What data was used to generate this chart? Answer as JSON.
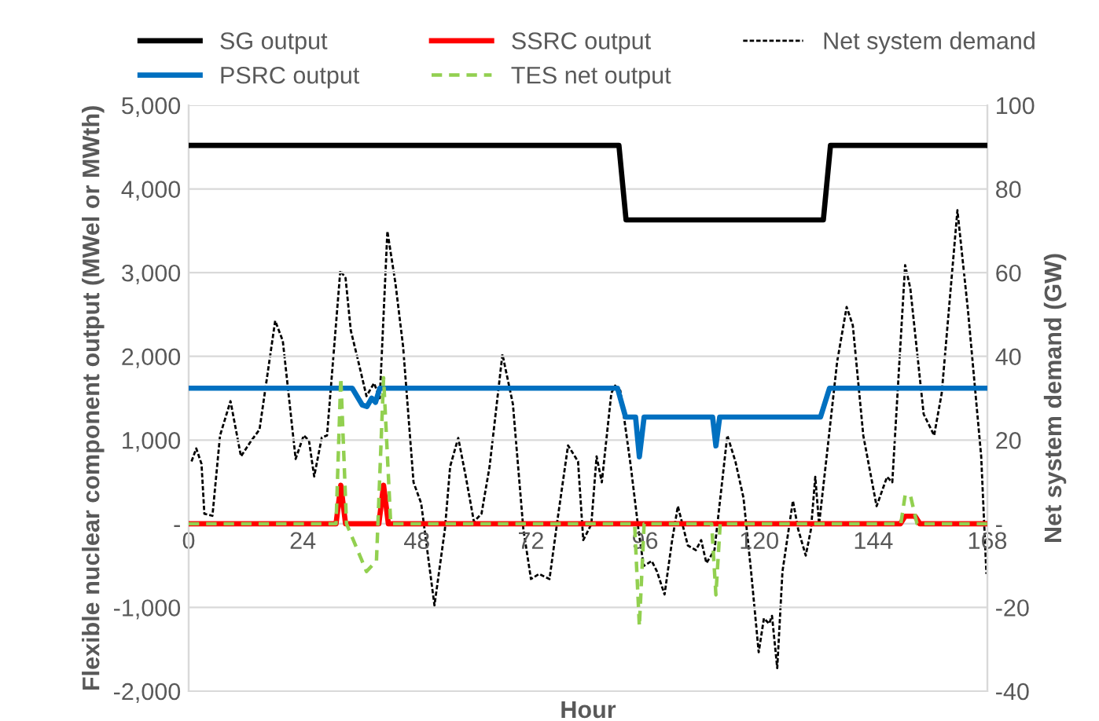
{
  "chart_data": {
    "type": "line",
    "xlabel": "Hour",
    "ylabel": "Flexible nuclear component output (MWel or MWth)",
    "y2label": "Net system demand (GW)",
    "xlim": [
      0,
      168
    ],
    "xticks": [
      0,
      24,
      48,
      72,
      96,
      120,
      144,
      168
    ],
    "ylim": [
      -2000,
      5000
    ],
    "yticks": [
      {
        "value": -2000,
        "label": "-2,000"
      },
      {
        "value": -1000,
        "label": "-1,000"
      },
      {
        "value": 0,
        "label": "-"
      },
      {
        "value": 1000,
        "label": "1,000"
      },
      {
        "value": 2000,
        "label": "2,000"
      },
      {
        "value": 3000,
        "label": "3,000"
      },
      {
        "value": 4000,
        "label": "4,000"
      },
      {
        "value": 5000,
        "label": "5,000"
      }
    ],
    "y2lim": [
      -40,
      100
    ],
    "y2ticks": [
      -40,
      -20,
      {
        "value": 0,
        "label": "-"
      },
      20,
      40,
      60,
      80,
      100
    ],
    "grid": "y",
    "legend": "top",
    "marker": "none",
    "series": [
      {
        "name": "SG output",
        "color": "#000000",
        "line_style": "solid",
        "x": [
          0,
          90.5,
          92,
          133.5,
          135,
          168
        ],
        "values": [
          4520,
          4520,
          3630,
          3630,
          4520,
          4520
        ]
      },
      {
        "name": "PSRC output",
        "color": "#0070c0",
        "line_style": "solid",
        "x": [
          0,
          34.4,
          36.5,
          37.5,
          38.5,
          39.3,
          40.2,
          90.2,
          91.9,
          94,
          94.8,
          95.8,
          110.2,
          110.9,
          111.7,
          132.9,
          134.8,
          168
        ],
        "values": [
          1620,
          1620,
          1420,
          1400,
          1500,
          1450,
          1620,
          1620,
          1275,
          1275,
          800,
          1275,
          1275,
          930,
          1275,
          1275,
          1620,
          1620
        ]
      },
      {
        "name": "SSRC output",
        "color": "#ff0000",
        "line_style": "solid",
        "x": [
          0,
          31,
          32,
          33,
          40,
          41,
          42,
          149.7,
          150.7,
          152.8,
          153.8,
          168
        ],
        "values": [
          0,
          0,
          460,
          0,
          0,
          460,
          0,
          0,
          90,
          90,
          0,
          0
        ]
      },
      {
        "name": "TES net output",
        "color": "#92d050",
        "line_style": "dashed",
        "x": [
          0,
          31,
          32,
          33.2,
          37.4,
          39.5,
          41,
          42.5,
          93.8,
          94.8,
          95.8,
          110,
          110.9,
          111.8,
          149.8,
          150.7,
          151.8,
          153.2,
          168
        ],
        "values": [
          0,
          0,
          1745,
          0,
          -570,
          -445,
          1745,
          0,
          0,
          -1225,
          0,
          0,
          -850,
          0,
          0,
          340,
          340,
          0,
          0
        ]
      },
      {
        "name": "Net system demand",
        "color": "#000000",
        "line_style": "dotted",
        "axis": "y2",
        "x": [
          0.6,
          1.6,
          2.7,
          3.3,
          5,
          6.6,
          8.8,
          11,
          13.2,
          14.9,
          18.2,
          19.8,
          22.5,
          24.2,
          25.3,
          26.4,
          28,
          29.1,
          31.9,
          33,
          34.1,
          35.7,
          37.4,
          39,
          40.2,
          41.8,
          43.5,
          45.1,
          47.3,
          48.9,
          51.7,
          53.9,
          55,
          56.7,
          58.3,
          60,
          61.6,
          63.3,
          66,
          68.2,
          70.4,
          72,
          73.7,
          75.9,
          77.6,
          79.8,
          81.9,
          83,
          84.7,
          85.8,
          86.9,
          88.9,
          89.7,
          90.8,
          93,
          94.6,
          95.7,
          97.4,
          98.5,
          100.1,
          101.7,
          102.9,
          105,
          106.7,
          107.8,
          108.9,
          110.6,
          113.3,
          115,
          116.7,
          118.3,
          119.9,
          121,
          122.1,
          122.7,
          123.8,
          124.9,
          127.1,
          128.2,
          129.8,
          130.9,
          131.8,
          132.6,
          134.2,
          136.4,
          138.4,
          139.7,
          141.9,
          144.7,
          146.9,
          148,
          150.7,
          151.8,
          154.6,
          156.8,
          158.4,
          161.7,
          163.9,
          166.7,
          167.8
        ],
        "values": [
          14.9,
          18.0,
          14.3,
          2.4,
          1.9,
          21.1,
          29.3,
          16.1,
          19.9,
          22.5,
          48.5,
          43.7,
          15.5,
          21.1,
          19.9,
          11.3,
          20.6,
          21.1,
          60.5,
          58.7,
          46.2,
          38.7,
          30.5,
          33.6,
          30.0,
          69.9,
          57.4,
          42.4,
          9.9,
          4.9,
          -19.5,
          -1.3,
          13.7,
          20.5,
          11.2,
          0.5,
          2.4,
          13.7,
          40.5,
          28.6,
          -1.3,
          -13.2,
          -12,
          -13.2,
          1.1,
          18.7,
          14.9,
          -3.9,
          -0.1,
          16.1,
          9.9,
          31.2,
          33,
          31.8,
          13.7,
          -1.3,
          -10.1,
          -8.9,
          -11.4,
          -16.9,
          -3.9,
          4.2,
          -5.2,
          -6.3,
          -3.9,
          -9.4,
          -6.3,
          21.1,
          14.9,
          6.2,
          -11.4,
          -30.7,
          -22.6,
          -23.9,
          -22,
          -34.5,
          -11.4,
          5.5,
          -1.3,
          -7.6,
          -1.3,
          11.2,
          -0.1,
          16.1,
          38.7,
          51.8,
          47.4,
          21.1,
          4.2,
          11.2,
          9.9,
          61.8,
          56.2,
          26.2,
          21.1,
          31.2,
          74.9,
          51.2,
          16.1,
          -12
        ]
      }
    ]
  }
}
